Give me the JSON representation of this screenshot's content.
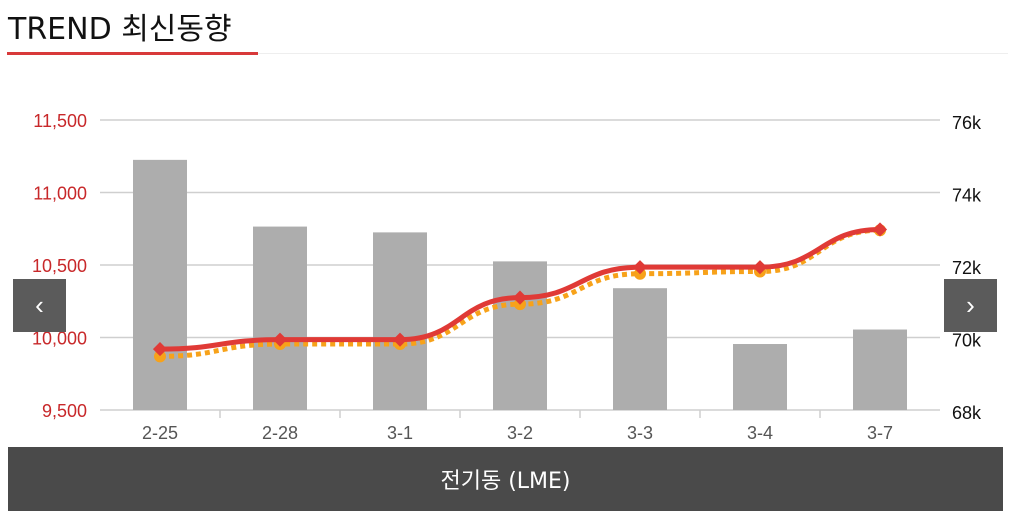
{
  "header": {
    "title": "TREND 최신동향"
  },
  "nav": {
    "prev_icon": "‹",
    "next_icon": "›"
  },
  "footer": {
    "label": "전기동 (LME)"
  },
  "colors": {
    "bar": "#adadad",
    "line_primary": "#e03a36",
    "line_secondary": "#f7a21a",
    "left_axis_text": "#c8282a",
    "grid": "#cfcfcf"
  },
  "chart_data": {
    "type": "bar",
    "categories": [
      "2-25",
      "2-28",
      "3-1",
      "3-2",
      "3-3",
      "3-4",
      "3-7"
    ],
    "left_axis": {
      "ticks": [
        "11,500",
        "11,000",
        "10,500",
        "10,000",
        "9,500"
      ],
      "range": [
        9500,
        11500
      ]
    },
    "right_axis": {
      "ticks": [
        "76k",
        "74k",
        "72k",
        "70k",
        "68k"
      ],
      "range": [
        68000,
        76000
      ]
    },
    "bars": {
      "values": [
        11225,
        10765,
        10725,
        10525,
        10340,
        9955,
        10055
      ],
      "axis": "left"
    },
    "lines": [
      {
        "values": [
          9920,
          9985,
          9985,
          10275,
          10485,
          10485,
          10745
        ],
        "axis": "left",
        "color": "#e03a36",
        "style": "solid"
      },
      {
        "values": [
          9870,
          9955,
          9955,
          10230,
          10440,
          10455,
          10740
        ],
        "axis": "left",
        "color": "#f7a21a",
        "style": "dotted"
      }
    ],
    "grid": true
  }
}
